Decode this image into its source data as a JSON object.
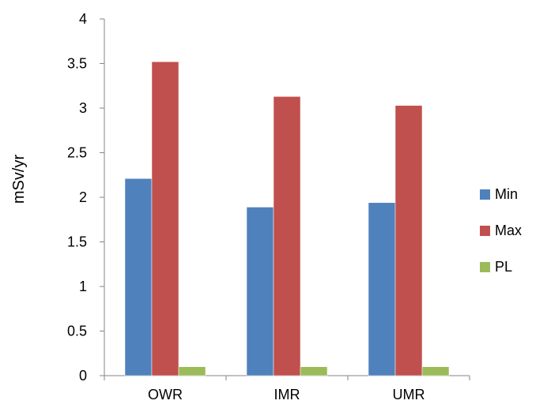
{
  "chart_data": {
    "type": "bar",
    "title": "",
    "xlabel": "",
    "ylabel": "mSv/yr",
    "categories": [
      "OWR",
      "IMR",
      "UMR"
    ],
    "series": [
      {
        "name": "Min",
        "values": [
          2.21,
          1.89,
          1.94
        ],
        "color": "#4F81BD"
      },
      {
        "name": "Max",
        "values": [
          3.52,
          3.13,
          3.03
        ],
        "color": "#C0504D"
      },
      {
        "name": "PL",
        "values": [
          0.1,
          0.1,
          0.1
        ],
        "color": "#9BBB59"
      }
    ],
    "ylim": [
      0,
      4
    ],
    "yticks": [
      0,
      0.5,
      1,
      1.5,
      2,
      2.5,
      3,
      3.5,
      4
    ],
    "ytick_labels": [
      "0",
      "0.5",
      "1",
      "1.5",
      "2",
      "2.5",
      "3",
      "3.5",
      "4"
    ],
    "grid": false,
    "legend_position": "right"
  }
}
